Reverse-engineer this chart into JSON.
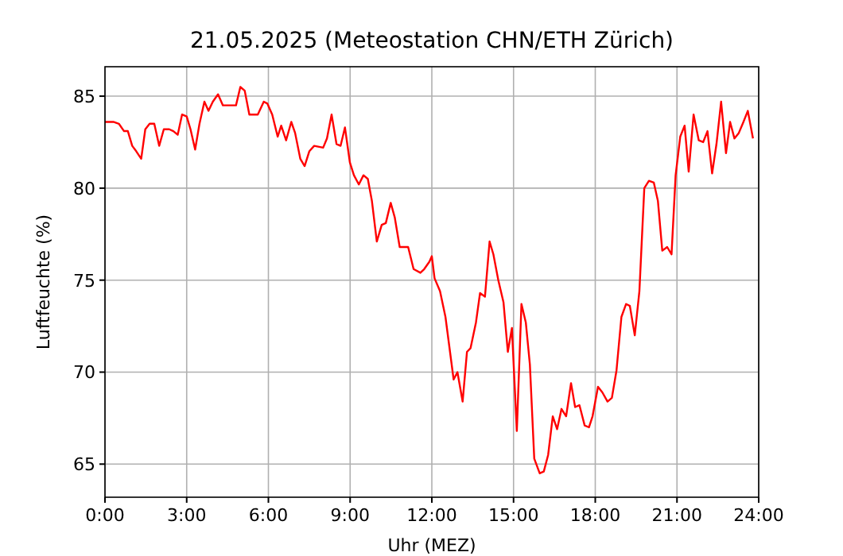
{
  "chart_data": {
    "type": "line",
    "title": "21.05.2025  (Meteostation CHN/ETH Zürich)",
    "xlabel": "Uhr (MEZ)",
    "ylabel": "Luftfeuchte (%)",
    "xlim": [
      0,
      24
    ],
    "ylim": [
      63.2,
      86.6
    ],
    "xticks": [
      {
        "value": 0,
        "label": "0:00"
      },
      {
        "value": 3,
        "label": "3:00"
      },
      {
        "value": 6,
        "label": "6:00"
      },
      {
        "value": 9,
        "label": "9:00"
      },
      {
        "value": 12,
        "label": "12:00"
      },
      {
        "value": 15,
        "label": "15:00"
      },
      {
        "value": 18,
        "label": "18:00"
      },
      {
        "value": 21,
        "label": "21:00"
      },
      {
        "value": 24,
        "label": "24:00"
      }
    ],
    "yticks": [
      65,
      70,
      75,
      80,
      85
    ],
    "grid": true,
    "x": [
      0,
      0.31,
      0.51,
      0.7,
      0.84,
      1.0,
      1.15,
      1.33,
      1.48,
      1.64,
      1.81,
      1.99,
      2.16,
      2.36,
      2.51,
      2.67,
      2.83,
      3.0,
      3.14,
      3.31,
      3.47,
      3.65,
      3.8,
      3.96,
      4.15,
      4.33,
      4.62,
      4.81,
      4.97,
      5.13,
      5.3,
      5.61,
      5.83,
      5.96,
      6.14,
      6.34,
      6.47,
      6.65,
      6.84,
      6.98,
      7.17,
      7.33,
      7.5,
      7.68,
      8.01,
      8.15,
      8.32,
      8.5,
      8.65,
      8.81,
      8.99,
      9.14,
      9.32,
      9.49,
      9.65,
      9.8,
      9.98,
      10.16,
      10.31,
      10.49,
      10.64,
      10.82,
      11.13,
      11.33,
      11.58,
      11.72,
      11.91,
      12.0,
      12.1,
      12.3,
      12.5,
      12.8,
      12.94,
      13.13,
      13.29,
      13.42,
      13.62,
      13.77,
      13.95,
      14.12,
      14.26,
      14.44,
      14.63,
      14.79,
      14.94,
      15.12,
      15.29,
      15.45,
      15.6,
      15.76,
      15.96,
      16.11,
      16.27,
      16.44,
      16.6,
      16.76,
      16.93,
      17.11,
      17.26,
      17.42,
      17.61,
      17.77,
      17.9,
      18.1,
      18.26,
      18.45,
      18.61,
      18.78,
      18.96,
      19.13,
      19.27,
      19.45,
      19.62,
      19.8,
      19.97,
      20.15,
      20.3,
      20.46,
      20.64,
      20.8,
      20.95,
      21.12,
      21.28,
      21.43,
      21.61,
      21.8,
      21.96,
      22.12,
      22.29,
      22.45,
      22.62,
      22.8,
      22.95,
      23.11,
      23.27,
      23.44,
      23.6,
      23.79
    ],
    "series": [
      {
        "color": "#ff0000",
        "values": [
          83.6,
          83.6,
          83.5,
          83.1,
          83.1,
          82.3,
          82.0,
          81.6,
          83.2,
          83.5,
          83.5,
          82.3,
          83.2,
          83.2,
          83.1,
          82.9,
          84.0,
          83.9,
          83.2,
          82.1,
          83.5,
          84.7,
          84.2,
          84.7,
          85.1,
          84.5,
          84.5,
          84.5,
          85.5,
          85.3,
          84.0,
          84.0,
          84.7,
          84.6,
          84.0,
          82.8,
          83.4,
          82.6,
          83.6,
          83.0,
          81.6,
          81.2,
          82.0,
          82.3,
          82.2,
          82.7,
          84.0,
          82.4,
          82.3,
          83.3,
          81.4,
          80.7,
          80.2,
          80.7,
          80.5,
          79.3,
          77.1,
          78.0,
          78.1,
          79.2,
          78.4,
          76.8,
          76.8,
          75.6,
          75.4,
          75.6,
          76.0,
          76.3,
          75.1,
          74.4,
          73.0,
          69.6,
          70.0,
          68.4,
          71.1,
          71.3,
          72.7,
          74.3,
          74.1,
          77.1,
          76.4,
          75.0,
          73.8,
          71.1,
          72.4,
          66.8,
          73.7,
          72.7,
          70.4,
          65.3,
          64.5,
          64.6,
          65.5,
          67.6,
          66.9,
          68.0,
          67.6,
          69.4,
          68.1,
          68.2,
          67.1,
          67.0,
          67.6,
          69.2,
          68.9,
          68.4,
          68.6,
          70.1,
          73.0,
          73.7,
          73.6,
          72.0,
          74.4,
          80.0,
          80.4,
          80.3,
          79.3,
          76.6,
          76.8,
          76.4,
          80.7,
          82.8,
          83.4,
          80.9,
          84.0,
          82.6,
          82.5,
          83.1,
          80.8,
          82.4,
          84.7,
          81.9,
          83.6,
          82.7,
          83.0,
          83.6,
          84.2,
          82.7
        ]
      }
    ]
  }
}
